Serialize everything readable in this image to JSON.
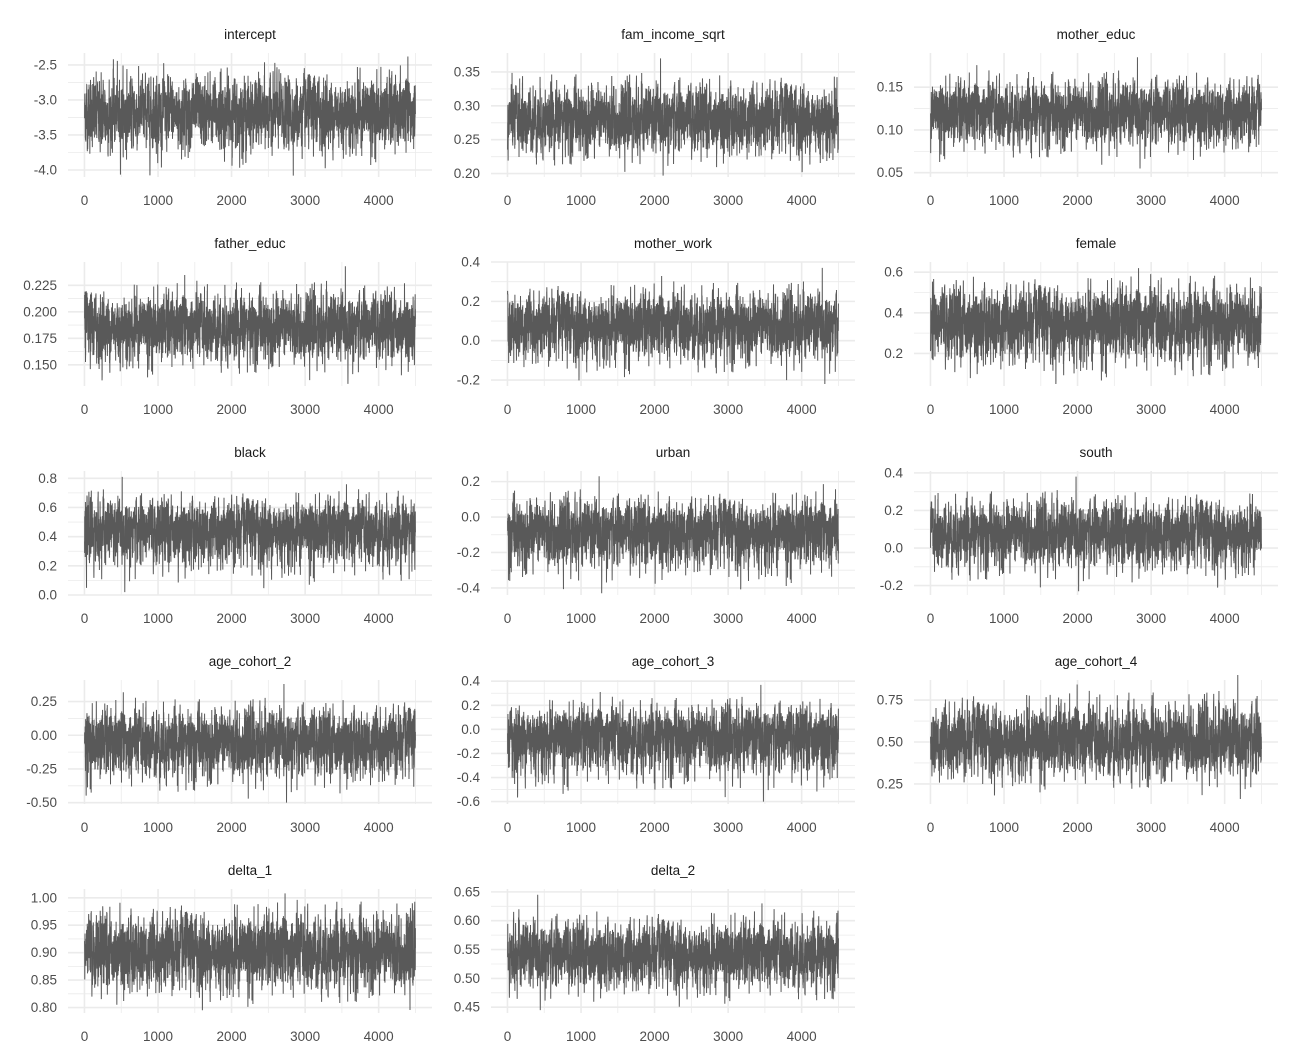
{
  "chart_data": [
    {
      "type": "line",
      "title": "intercept",
      "xlim": [
        0,
        4500
      ],
      "xticks": [
        "0",
        "1000",
        "2000",
        "3000",
        "4000"
      ],
      "ylim": [
        -4.1,
        -2.33
      ],
      "yticks": [
        "-4.0",
        "-3.5",
        "-3.0",
        "-2.5"
      ],
      "center": -3.2,
      "min": -4.08,
      "max": -2.38
    },
    {
      "type": "line",
      "title": "fam_income_sqrt",
      "xlim": [
        0,
        4500
      ],
      "xticks": [
        "0",
        "1000",
        "2000",
        "3000",
        "4000"
      ],
      "ylim": [
        0.195,
        0.378
      ],
      "yticks": [
        "0.20",
        "0.25",
        "0.30",
        "0.35"
      ],
      "center": 0.28,
      "min": 0.197,
      "max": 0.37
    },
    {
      "type": "line",
      "title": "mother_educ",
      "xlim": [
        0,
        4500
      ],
      "xticks": [
        "0",
        "1000",
        "2000",
        "3000",
        "4000"
      ],
      "ylim": [
        0.045,
        0.19
      ],
      "yticks": [
        "0.05",
        "0.10",
        "0.15"
      ],
      "center": 0.12,
      "min": 0.055,
      "max": 0.185
    },
    {
      "type": "line",
      "title": "father_educ",
      "xlim": [
        0,
        4500
      ],
      "xticks": [
        "0",
        "1000",
        "2000",
        "3000",
        "4000"
      ],
      "ylim": [
        0.13,
        0.247
      ],
      "yticks": [
        "0.150",
        "0.175",
        "0.200",
        "0.225"
      ],
      "center": 0.185,
      "min": 0.132,
      "max": 0.243
    },
    {
      "type": "line",
      "title": "mother_work",
      "xlim": [
        0,
        4500
      ],
      "xticks": [
        "0",
        "1000",
        "2000",
        "3000",
        "4000"
      ],
      "ylim": [
        -0.23,
        0.4
      ],
      "yticks": [
        "-0.2",
        "0.0",
        "0.2",
        "0.4"
      ],
      "center": 0.08,
      "min": -0.22,
      "max": 0.37
    },
    {
      "type": "line",
      "title": "female",
      "xlim": [
        0,
        4500
      ],
      "xticks": [
        "0",
        "1000",
        "2000",
        "3000",
        "4000"
      ],
      "ylim": [
        0.04,
        0.65
      ],
      "yticks": [
        "0.2",
        "0.4",
        "0.6"
      ],
      "center": 0.35,
      "min": 0.05,
      "max": 0.62
    },
    {
      "type": "line",
      "title": "black",
      "xlim": [
        0,
        4500
      ],
      "xticks": [
        "0",
        "1000",
        "2000",
        "3000",
        "4000"
      ],
      "ylim": [
        0.0,
        0.85
      ],
      "yticks": [
        "0.0",
        "0.2",
        "0.4",
        "0.6",
        "0.8"
      ],
      "center": 0.45,
      "min": 0.02,
      "max": 0.81
    },
    {
      "type": "line",
      "title": "urban",
      "xlim": [
        0,
        4500
      ],
      "xticks": [
        "0",
        "1000",
        "2000",
        "3000",
        "4000"
      ],
      "ylim": [
        -0.44,
        0.26
      ],
      "yticks": [
        "-0.4",
        "-0.2",
        "0.0",
        "0.2"
      ],
      "center": -0.08,
      "min": -0.43,
      "max": 0.23
    },
    {
      "type": "line",
      "title": "south",
      "xlim": [
        0,
        4500
      ],
      "xticks": [
        "0",
        "1000",
        "2000",
        "3000",
        "4000"
      ],
      "ylim": [
        -0.25,
        0.41
      ],
      "yticks": [
        "-0.2",
        "0.0",
        "0.2",
        "0.4"
      ],
      "center": 0.08,
      "min": -0.23,
      "max": 0.38
    },
    {
      "type": "line",
      "title": "age_cohort_2",
      "xlim": [
        0,
        4500
      ],
      "xticks": [
        "0",
        "1000",
        "2000",
        "3000",
        "4000"
      ],
      "ylim": [
        -0.51,
        0.41
      ],
      "yticks": [
        "-0.50",
        "-0.25",
        "0.00",
        "0.25"
      ],
      "center": -0.05,
      "min": -0.5,
      "max": 0.38
    },
    {
      "type": "line",
      "title": "age_cohort_3",
      "xlim": [
        0,
        4500
      ],
      "xticks": [
        "0",
        "1000",
        "2000",
        "3000",
        "4000"
      ],
      "ylim": [
        -0.62,
        0.41
      ],
      "yticks": [
        "-0.6",
        "-0.4",
        "-0.2",
        "0.0",
        "0.2",
        "0.4"
      ],
      "center": -0.05,
      "min": -0.6,
      "max": 0.37
    },
    {
      "type": "line",
      "title": "age_cohort_4",
      "xlim": [
        0,
        4500
      ],
      "xticks": [
        "0",
        "1000",
        "2000",
        "3000",
        "4000"
      ],
      "ylim": [
        0.13,
        0.87
      ],
      "yticks": [
        "0.25",
        "0.50",
        "0.75"
      ],
      "center": 0.5,
      "min": 0.16,
      "max": 0.9
    },
    {
      "type": "line",
      "title": "delta_1",
      "xlim": [
        0,
        4500
      ],
      "xticks": [
        "0",
        "1000",
        "2000",
        "3000",
        "4000"
      ],
      "ylim": [
        0.79,
        1.016
      ],
      "yticks": [
        "0.80",
        "0.85",
        "0.90",
        "0.95",
        "1.00"
      ],
      "center": 0.9,
      "min": 0.795,
      "max": 1.008
    },
    {
      "type": "line",
      "title": "delta_2",
      "xlim": [
        0,
        4500
      ],
      "xticks": [
        "0",
        "1000",
        "2000",
        "3000",
        "4000"
      ],
      "ylim": [
        0.44,
        0.655
      ],
      "yticks": [
        "0.45",
        "0.50",
        "0.55",
        "0.60",
        "0.65"
      ],
      "center": 0.54,
      "min": 0.445,
      "max": 0.645
    }
  ],
  "colors": {
    "line": "#595959",
    "grid": "#ebebeb",
    "text": "#4d4d4d"
  }
}
